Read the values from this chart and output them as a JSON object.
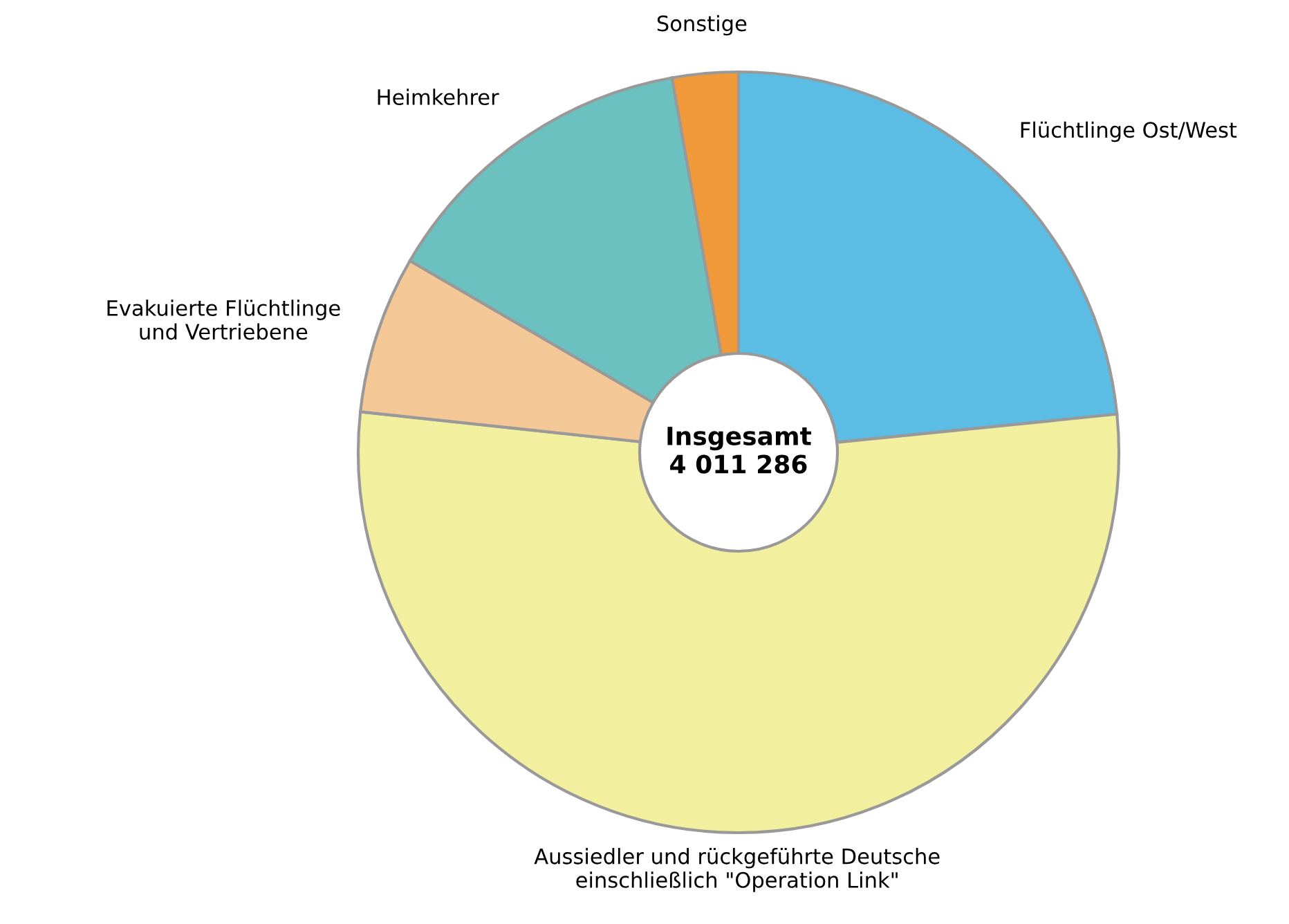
{
  "chart_data": {
    "type": "donut",
    "categories": [
      "Flüchtlinge Ost/West",
      "Aussiedler und rückgeführte Deutsche einschließlich \"Operation Link\"",
      "Evakuierte Flüchtlinge und Vertriebene",
      "Heimkehrer",
      "Sonstige"
    ],
    "values": [
      23.4,
      53.3,
      6.7,
      13.8,
      2.8
    ],
    "colors": [
      "#5bbde4",
      "#f2ef9e",
      "#f4c797",
      "#6bc1c0",
      "#f0993a"
    ],
    "annotations": [
      "Insgesamt\n4 011 286"
    ]
  }
}
